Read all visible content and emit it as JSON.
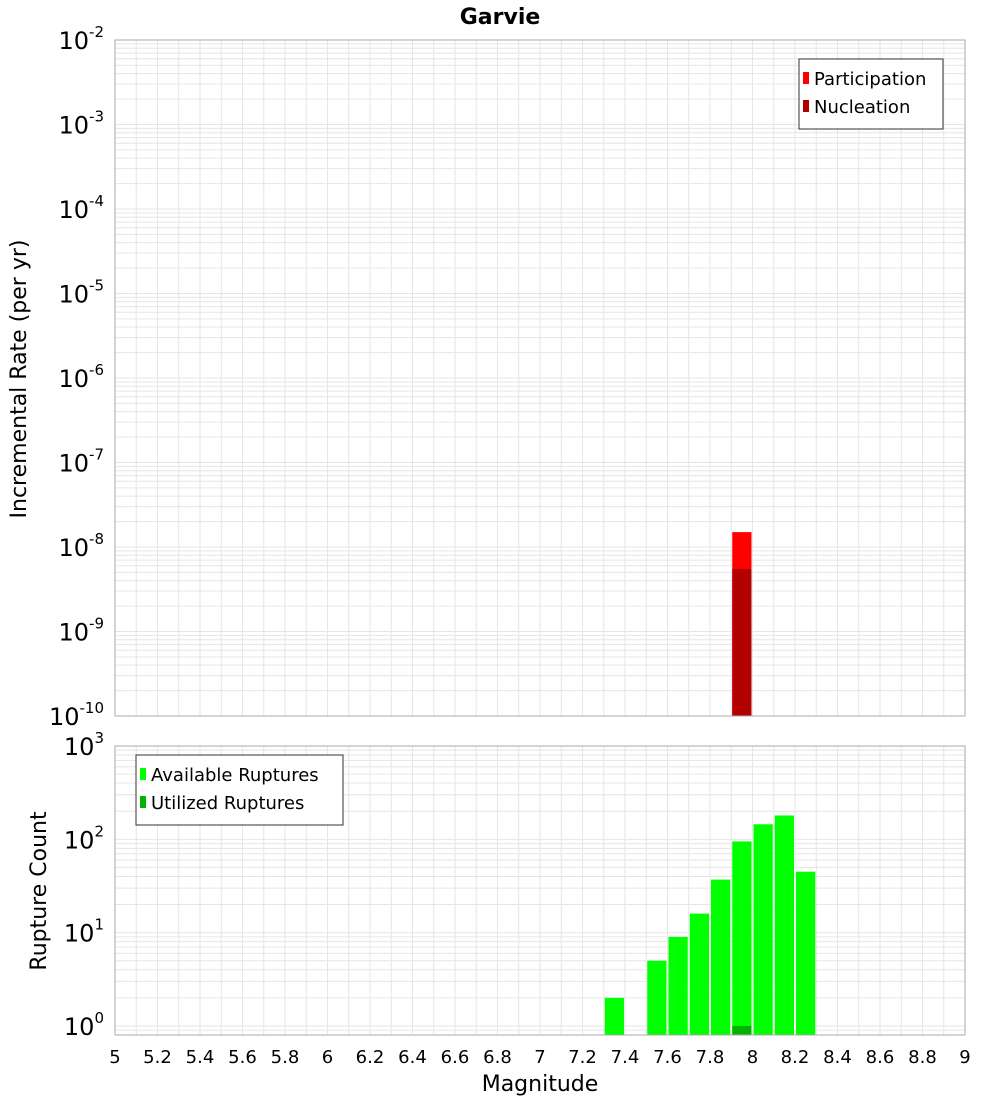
{
  "chart_data": [
    {
      "type": "bar",
      "title": "Garvie",
      "ylabel": "Incremental Rate (per yr)",
      "xlabel": "",
      "yscale": "log",
      "ylim": [
        1e-10,
        0.01
      ],
      "xlim": [
        5,
        9
      ],
      "bin_width": 0.1,
      "grid": true,
      "legend_position": "top-right",
      "series": [
        {
          "name": "Participation",
          "color": "#ff0000",
          "x": [
            7.95
          ],
          "values": [
            1.5e-08
          ]
        },
        {
          "name": "Nucleation",
          "color": "#b30000",
          "x": [
            7.95
          ],
          "values": [
            5.5e-09
          ]
        }
      ]
    },
    {
      "type": "bar",
      "ylabel": "Rupture Count",
      "xlabel": "Magnitude",
      "yscale": "log",
      "ylim": [
        0.8,
        1000
      ],
      "xlim": [
        5,
        9
      ],
      "bin_width": 0.1,
      "grid": true,
      "legend_position": "top-left",
      "series": [
        {
          "name": "Available Ruptures",
          "color": "#00ff00",
          "x": [
            7.35,
            7.55,
            7.65,
            7.75,
            7.85,
            7.95,
            8.05,
            8.15,
            8.25
          ],
          "values": [
            2,
            5,
            9,
            16,
            37,
            95,
            145,
            180,
            45
          ]
        },
        {
          "name": "Utilized Ruptures",
          "color": "#00b300",
          "x": [
            7.95
          ],
          "values": [
            1
          ]
        }
      ]
    }
  ],
  "x_ticks": [
    "5",
    "5.2",
    "5.4",
    "5.6",
    "5.8",
    "6",
    "6.2",
    "6.4",
    "6.6",
    "6.8",
    "7",
    "7.2",
    "7.4",
    "7.6",
    "7.8",
    "8",
    "8.2",
    "8.4",
    "8.6",
    "8.8",
    "9"
  ],
  "top_y_ticks": [
    {
      "base": "10",
      "exp": "-2"
    },
    {
      "base": "10",
      "exp": "-3"
    },
    {
      "base": "10",
      "exp": "-4"
    },
    {
      "base": "10",
      "exp": "-5"
    },
    {
      "base": "10",
      "exp": "-6"
    },
    {
      "base": "10",
      "exp": "-7"
    },
    {
      "base": "10",
      "exp": "-8"
    },
    {
      "base": "10",
      "exp": "-9"
    },
    {
      "base": "10",
      "exp": "-10"
    }
  ],
  "bottom_y_ticks": [
    {
      "base": "10",
      "exp": "3"
    },
    {
      "base": "10",
      "exp": "2"
    },
    {
      "base": "10",
      "exp": "1"
    },
    {
      "base": "10",
      "exp": "0"
    }
  ],
  "colors": {
    "grid": "#e6e6e6",
    "frame": "#aaaaaa"
  }
}
